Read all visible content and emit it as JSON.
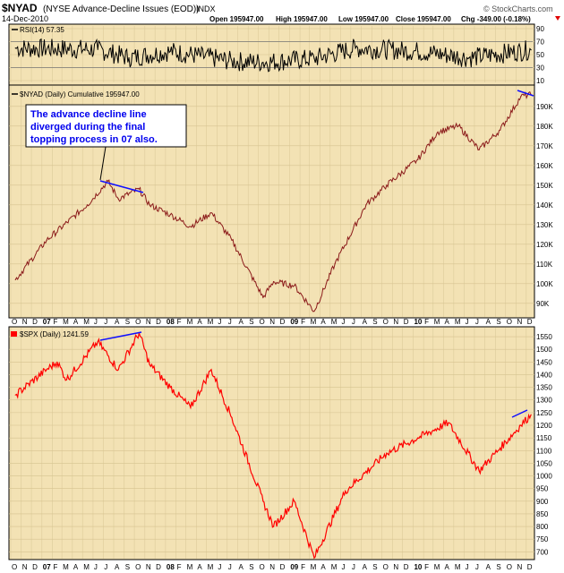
{
  "header": {
    "symbol": "$NYAD",
    "description": "(NYSE Advance-Decline Issues (EOD))",
    "exchange": "INDX",
    "date": "14-Dec-2010",
    "open": "Open 195947.00",
    "high": "High 195947.00",
    "low": "Low 195947.00",
    "close": "Close 195947.00",
    "chg": "Chg -349.00 (-0.18%)",
    "watermark": "© StockCharts.com"
  },
  "rsi_panel": {
    "label": "RSI(14) 57.35",
    "ticks": [
      "90",
      "70",
      "50",
      "30",
      "10"
    ]
  },
  "nyad_panel": {
    "label": "$NYAD (Daily) Cumulative 195947.00",
    "annotation_lines": [
      "The advance decline line",
      "diverged during the final",
      "topping process in 07 also."
    ],
    "ticks": [
      "190K",
      "180K",
      "170K",
      "160K",
      "150K",
      "140K",
      "130K",
      "120K",
      "110K",
      "100K",
      "90K"
    ]
  },
  "spx_panel": {
    "label": "$SPX (Daily) 1241.59",
    "ticks": [
      "1550",
      "1500",
      "1450",
      "1400",
      "1350",
      "1300",
      "1250",
      "1200",
      "1150",
      "1100",
      "1050",
      "1000",
      "950",
      "900",
      "850",
      "800",
      "750",
      "700"
    ]
  },
  "time_axis": {
    "labels": [
      "O",
      "N",
      "D",
      "07",
      "F",
      "M",
      "A",
      "M",
      "J",
      "J",
      "A",
      "S",
      "O",
      "N",
      "D",
      "08",
      "F",
      "M",
      "A",
      "M",
      "J",
      "J",
      "A",
      "S",
      "O",
      "N",
      "D",
      "09",
      "F",
      "M",
      "A",
      "M",
      "J",
      "J",
      "A",
      "S",
      "O",
      "N",
      "D",
      "10",
      "F",
      "M",
      "A",
      "M",
      "J",
      "J",
      "A",
      "S",
      "O",
      "N",
      "D"
    ]
  },
  "colors": {
    "panel_bg": "#f3e2b4",
    "price_line": "#ff0000",
    "nyad_line": "#8b1a1a",
    "rsi_line": "#000000",
    "divergence_line": "#1010ff",
    "annotation_text": "#0000ee",
    "grid": "#d9c795"
  },
  "chart_data": [
    {
      "type": "line",
      "series": [
        {
          "name": "RSI(14)",
          "x": [
            "2006-10",
            "2007-06",
            "2007-09",
            "2008-01",
            "2008-07",
            "2008-10",
            "2009-03",
            "2009-07",
            "2010-01",
            "2010-06",
            "2010-12"
          ],
          "values": [
            60,
            58,
            45,
            55,
            40,
            38,
            44,
            60,
            55,
            45,
            57.35
          ]
        }
      ],
      "ylim": [
        10,
        90
      ]
    },
    {
      "type": "line",
      "series": [
        {
          "name": "$NYAD (Daily) Cumulative",
          "x": [
            "2006-10",
            "2007-01",
            "2007-05",
            "2007-07",
            "2007-08",
            "2007-10",
            "2007-11",
            "2008-01",
            "2008-03",
            "2008-05",
            "2008-07",
            "2008-10",
            "2008-11",
            "2009-01",
            "2009-03",
            "2009-05",
            "2009-08",
            "2009-10",
            "2010-01",
            "2010-03",
            "2010-05",
            "2010-07",
            "2010-09",
            "2010-11",
            "2010-12"
          ],
          "values": [
            102000,
            122000,
            140000,
            152000,
            143000,
            148000,
            140000,
            135000,
            129000,
            136000,
            122000,
            93000,
            101000,
            99000,
            86000,
            110000,
            140000,
            150000,
            163000,
            177000,
            180000,
            168000,
            178000,
            195000,
            195947
          ]
        }
      ],
      "ylim": [
        84000,
        199000
      ]
    },
    {
      "type": "line",
      "series": [
        {
          "name": "$SPX (Daily)",
          "x": [
            "2006-10",
            "2007-01",
            "2007-02",
            "2007-03",
            "2007-06",
            "2007-08",
            "2007-10",
            "2007-11",
            "2008-01",
            "2008-03",
            "2008-05",
            "2008-07",
            "2008-10",
            "2008-11",
            "2009-01",
            "2009-03",
            "2009-06",
            "2009-10",
            "2010-01",
            "2010-04",
            "2010-07",
            "2010-09",
            "2010-11",
            "2010-12"
          ],
          "values": [
            1320,
            1420,
            1450,
            1380,
            1530,
            1420,
            1565,
            1440,
            1350,
            1270,
            1420,
            1230,
            900,
            800,
            900,
            676,
            940,
            1090,
            1150,
            1210,
            1020,
            1110,
            1200,
            1241.59
          ]
        }
      ],
      "ylim": [
        680,
        1575
      ]
    }
  ]
}
